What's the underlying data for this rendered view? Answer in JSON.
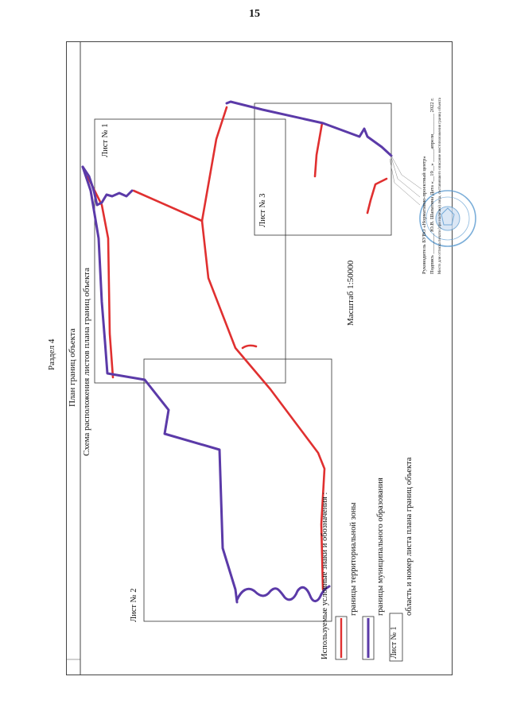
{
  "page_number": "15",
  "header": {
    "section": "Раздел 4",
    "title": "План границ объекта",
    "subtitle": "Схема расположения листов плана границ объекта"
  },
  "sheets": {
    "sheet1": "Лист № 1",
    "sheet2": "Лист № 2",
    "sheet3": "Лист № 3"
  },
  "scale": "Масштаб 1:50000",
  "legend": {
    "title": "Используемые условные знаки и обозначения :",
    "items": [
      {
        "label": "границы территориальной зоны",
        "color": "#e03030"
      },
      {
        "label": "границы муниципального образования",
        "color": "#5b3aa8"
      },
      {
        "label": "область и номер листа плана границ объекта",
        "sample": "Лист № 1"
      }
    ]
  },
  "signature": {
    "line1": "Руководитель БУВО «Нормативно-проектный центр»",
    "line2": "Подпись ________ Ю.В. Шапатина   Дата «__19__» _____апреля________ 2022 г.",
    "line3": "Место для оттиска печати (при наличии) лица, составившего описание местоположения границ объекта"
  },
  "colors": {
    "zone_boundary": "#e03030",
    "municipal_boundary": "#5b3aa8",
    "stamp": "#5a9ad0"
  }
}
